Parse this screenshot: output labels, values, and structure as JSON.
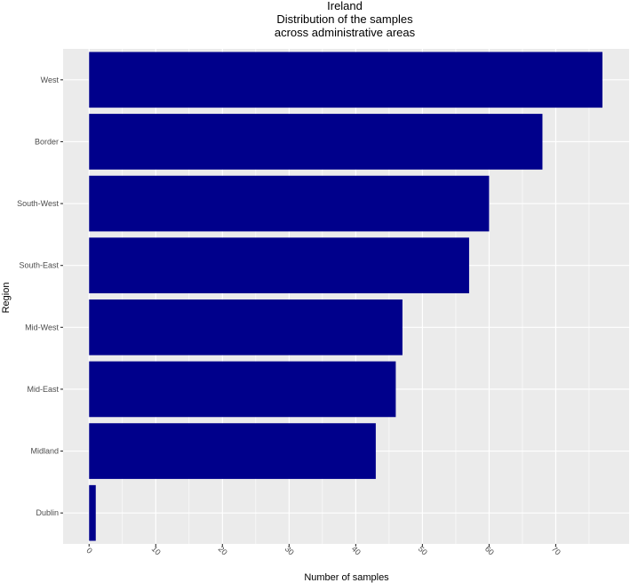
{
  "chart_data": {
    "type": "bar",
    "orientation": "horizontal",
    "title_lines": [
      "Ireland",
      "Distribution of the samples",
      "across administrative areas"
    ],
    "xlabel": "Number of samples",
    "ylabel": "Region",
    "categories": [
      "West",
      "Border",
      "South-West",
      "South-East",
      "Mid-West",
      "Mid-East",
      "Midland",
      "Dublin"
    ],
    "values": [
      77,
      68,
      60,
      57,
      47,
      46,
      43,
      1
    ],
    "xlim": [
      -3.9,
      81
    ],
    "x_ticks": [
      0,
      10,
      20,
      30,
      40,
      50,
      60,
      70
    ],
    "x_tick_labels": [
      "0",
      "10",
      "20",
      "30",
      "40",
      "50",
      "60",
      "70"
    ],
    "x_tick_label_angle": 45,
    "grid": true,
    "colors": {
      "bar": "#00008b",
      "panel_background": "#ebebeb",
      "grid": "#ffffff"
    }
  }
}
